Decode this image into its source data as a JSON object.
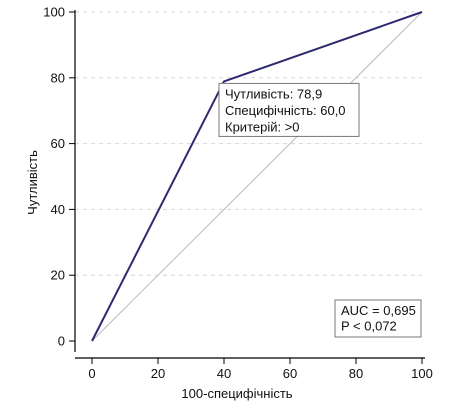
{
  "chart_data": {
    "type": "line",
    "xlabel": "100-специфічність",
    "ylabel": "Чутливість",
    "xlim": [
      0,
      100
    ],
    "ylim": [
      0,
      100
    ],
    "xticks": [
      "0",
      "20",
      "40",
      "60",
      "80",
      "100"
    ],
    "yticks": [
      "0",
      "20",
      "40",
      "60",
      "80",
      "100"
    ],
    "grid": true,
    "series": [
      {
        "x": [
          0,
          40,
          100
        ],
        "y": [
          0,
          78.9,
          100
        ],
        "color": "#2e2a6e"
      }
    ],
    "reference_line": {
      "x": [
        0,
        100
      ],
      "y": [
        0,
        100
      ],
      "color": "#bbbbbb"
    },
    "annotation": {
      "lines": [
        "Чутливість: 78,9",
        "Специфічність: 60,0",
        "Критерій: >0"
      ],
      "x": 40,
      "y": 78.9
    },
    "stats": {
      "lines": [
        "AUC = 0,695",
        "P < 0,072"
      ]
    }
  }
}
